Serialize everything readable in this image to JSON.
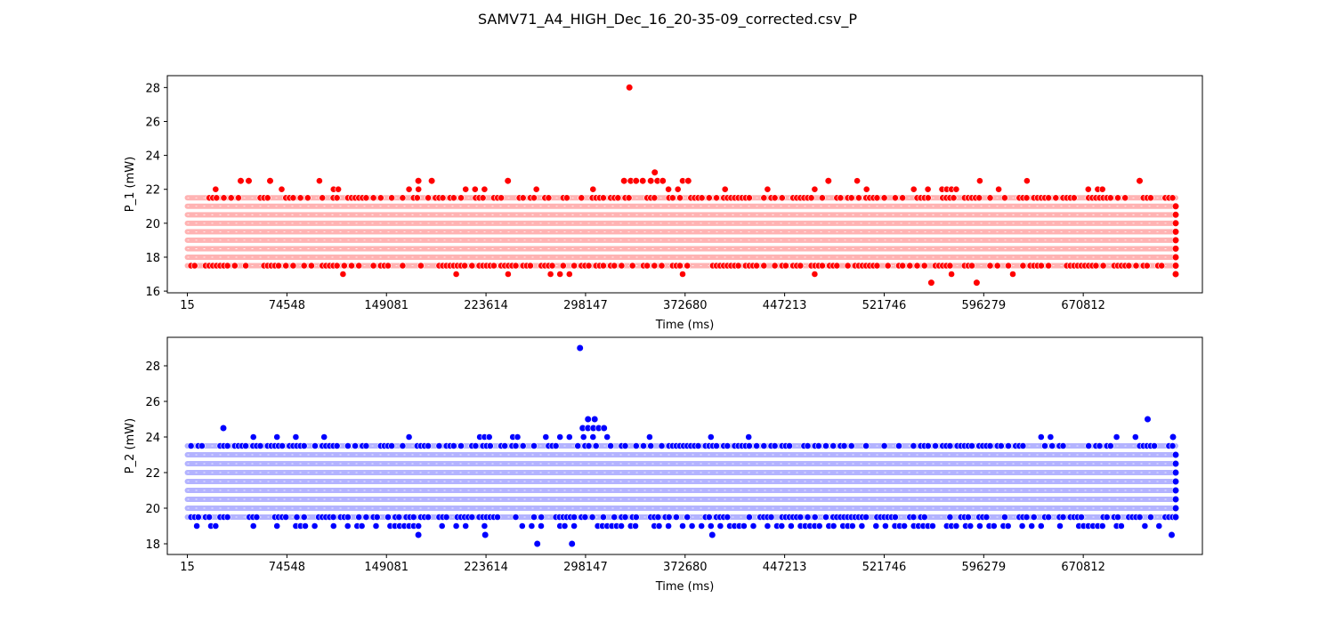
{
  "title": "SAMV71_A4_HIGH_Dec_16_20-35-09_corrected.csv_P",
  "chart_data": [
    {
      "type": "scatter",
      "xlabel": "Time (ms)",
      "ylabel": "P_1 (mW)",
      "xlim": [
        -15000,
        760000
      ],
      "ylim": [
        15.9,
        28.7
      ],
      "xticks": [
        15,
        74548,
        149081,
        223614,
        298147,
        372680,
        447213,
        521746,
        596279,
        670812
      ],
      "yticks": [
        16,
        18,
        20,
        22,
        24,
        26,
        28
      ],
      "grid": false,
      "legend": "none",
      "x_range": [
        15,
        740000
      ],
      "color": "#ff0000",
      "band_color": "#ffb3b3",
      "dense_levels": [
        17.5,
        18.0,
        18.5,
        19.0,
        19.5,
        20.0,
        20.5,
        21.0,
        21.5
      ],
      "sparse_levels": [
        {
          "y": 22.0,
          "density": 0.18
        },
        {
          "y": 22.5,
          "density": 0.03
        },
        {
          "y": 17.0,
          "density": 0.035
        }
      ],
      "series": [
        {
          "values": [
            [
              331000,
              28.0
            ],
            [
              350000,
              23.0
            ],
            [
              240000,
              22.5
            ],
            [
              375000,
              22.5
            ],
            [
              480000,
              22.5
            ],
            [
              713000,
              22.5
            ],
            [
              40000,
              22.5
            ],
            [
              46000,
              22.5
            ],
            [
              62000,
              22.5
            ],
            [
              173000,
              22.5
            ],
            [
              183000,
              22.5
            ],
            [
              327000,
              22.5
            ],
            [
              332000,
              22.5
            ],
            [
              336000,
              22.5
            ],
            [
              341000,
              22.5
            ],
            [
              347000,
              22.5
            ],
            [
              352000,
              22.5
            ],
            [
              356000,
              22.5
            ],
            [
              557000,
              16.5
            ],
            [
              591000,
              16.5
            ],
            [
              740000,
              21.0
            ],
            [
              740000,
              20.5
            ],
            [
              740000,
              20.0
            ],
            [
              740000,
              19.5
            ],
            [
              740000,
              19.0
            ],
            [
              740000,
              18.5
            ],
            [
              740000,
              18.0
            ],
            [
              740000,
              17.5
            ],
            [
              740000,
              17.0
            ]
          ]
        }
      ]
    },
    {
      "type": "scatter",
      "xlabel": "Time (ms)",
      "ylabel": "P_2 (mW)",
      "xlim": [
        -15000,
        760000
      ],
      "ylim": [
        17.4,
        29.6
      ],
      "xticks": [
        15,
        74548,
        149081,
        223614,
        298147,
        372680,
        447213,
        521746,
        596279,
        670812
      ],
      "yticks": [
        18,
        20,
        22,
        24,
        26,
        28
      ],
      "grid": false,
      "legend": "none",
      "x_range": [
        15,
        740000
      ],
      "color": "#0000ff",
      "band_color": "#b3b3ff",
      "dense_levels": [
        19.5,
        20.0,
        20.5,
        21.0,
        21.5,
        22.0,
        22.5,
        23.0,
        23.5
      ],
      "sparse_levels": [
        {
          "y": 24.0,
          "density": 0.08
        },
        {
          "y": 19.0,
          "density": 0.45
        }
      ],
      "series": [
        {
          "values": [
            [
              294000,
              29.0
            ],
            [
              719000,
              25.0
            ],
            [
              300000,
              25.0
            ],
            [
              305000,
              25.0
            ],
            [
              296000,
              24.5
            ],
            [
              300000,
              24.5
            ],
            [
              304000,
              24.5
            ],
            [
              308000,
              24.5
            ],
            [
              312000,
              24.5
            ],
            [
              27000,
              24.5
            ],
            [
              173000,
              18.5
            ],
            [
              223000,
              18.5
            ],
            [
              393000,
              18.5
            ],
            [
              737000,
              18.5
            ],
            [
              262000,
              18.0
            ],
            [
              288000,
              18.0
            ],
            [
              738000,
              24.0
            ],
            [
              740000,
              23.0
            ],
            [
              740000,
              22.5
            ],
            [
              740000,
              22.0
            ],
            [
              740000,
              21.5
            ],
            [
              740000,
              21.0
            ],
            [
              740000,
              20.5
            ],
            [
              740000,
              20.0
            ],
            [
              740000,
              19.5
            ]
          ]
        }
      ]
    }
  ]
}
